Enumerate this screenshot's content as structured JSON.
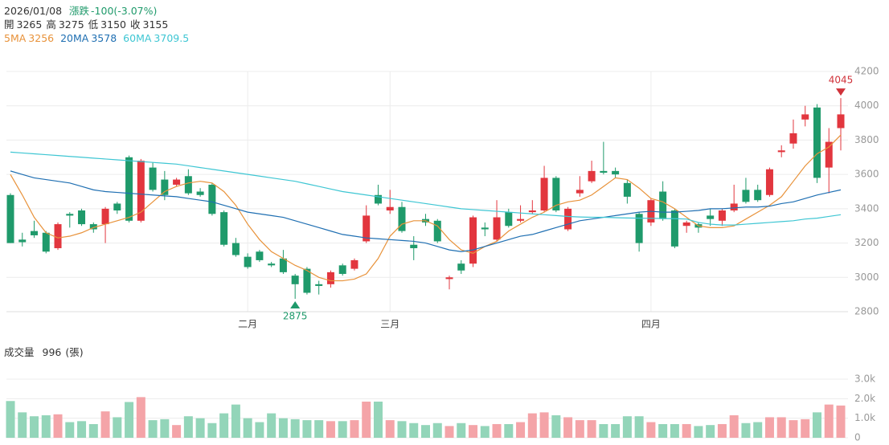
{
  "header": {
    "date": "2026/01/08",
    "change_label": "漲跌",
    "change": "-100(-3.07%)",
    "ohlc": [
      {
        "label": "開",
        "value": 3265
      },
      {
        "label": "高",
        "value": 3275
      },
      {
        "label": "低",
        "value": 3150
      },
      {
        "label": "收",
        "value": 3155
      }
    ]
  },
  "chart_data": [
    {
      "type": "candlestick",
      "up_color": "#e2363e",
      "down_color": "#1f9a6b",
      "categories": [
        null,
        null,
        null,
        null,
        null,
        null,
        null,
        null,
        null,
        null,
        null,
        null,
        null,
        null,
        null,
        null,
        null,
        null,
        null,
        null,
        "二月",
        null,
        null,
        null,
        null,
        null,
        null,
        null,
        null,
        null,
        null,
        null,
        "三月",
        null,
        null,
        null,
        null,
        null,
        null,
        null,
        null,
        null,
        null,
        null,
        null,
        null,
        null,
        null,
        null,
        null,
        null,
        null,
        null,
        null,
        "四月",
        null,
        null,
        null,
        null,
        null,
        null,
        null,
        null,
        null,
        null,
        null,
        null,
        null,
        null,
        null,
        null
      ],
      "open": [
        3480,
        3220,
        3270,
        3260,
        3170,
        3370,
        3390,
        3310,
        3310,
        3430,
        3700,
        3330,
        3640,
        3570,
        3540,
        3590,
        3500,
        3540,
        3380,
        3200,
        3120,
        3150,
        3080,
        3110,
        3010,
        3050,
        2960,
        2960,
        3070,
        3050,
        3210,
        3480,
        3390,
        3410,
        3190,
        3340,
        3330,
        2990,
        3080,
        3080,
        3290,
        3220,
        3380,
        3330,
        3380,
        3390,
        3580,
        3280,
        3490,
        3560,
        3620,
        3620,
        3550,
        3370,
        3320,
        3500,
        3390,
        3300,
        3310,
        3360,
        3330,
        3390,
        3510,
        3510,
        3480,
        3730,
        3780,
        3920,
        3990,
        3640,
        3870
      ],
      "high": [
        3490,
        3260,
        3330,
        3270,
        3320,
        3380,
        3400,
        3320,
        3410,
        3440,
        3710,
        3690,
        3670,
        3620,
        3580,
        3630,
        3520,
        3550,
        3390,
        3230,
        3140,
        3160,
        3090,
        3160,
        3020,
        3060,
        2980,
        3040,
        3080,
        3110,
        3420,
        3540,
        3510,
        3440,
        3240,
        3370,
        3340,
        3010,
        3100,
        3360,
        3320,
        3450,
        3400,
        3420,
        3450,
        3650,
        3590,
        3410,
        3590,
        3680,
        3790,
        3640,
        3570,
        3380,
        3460,
        3560,
        3400,
        3330,
        3320,
        3400,
        3400,
        3540,
        3580,
        3540,
        3640,
        3770,
        3920,
        4000,
        4010,
        3870,
        4045
      ],
      "low": [
        3200,
        3180,
        3230,
        3140,
        3160,
        3290,
        3300,
        3260,
        3200,
        3370,
        3320,
        3320,
        3500,
        3450,
        3530,
        3480,
        3470,
        3360,
        3180,
        3120,
        3050,
        3090,
        3060,
        3020,
        2875,
        2900,
        2900,
        2940,
        3010,
        3040,
        3200,
        3420,
        3370,
        3260,
        3100,
        3300,
        3200,
        2930,
        3020,
        3060,
        3240,
        3210,
        3290,
        3320,
        3370,
        3380,
        3380,
        3270,
        3470,
        3550,
        3600,
        3580,
        3430,
        3150,
        3300,
        3330,
        3170,
        3260,
        3260,
        3300,
        3300,
        3380,
        3430,
        3440,
        3470,
        3700,
        3750,
        3880,
        3550,
        3490,
        3740
      ],
      "close": [
        3200,
        3205,
        3245,
        3150,
        3310,
        3360,
        3310,
        3280,
        3400,
        3390,
        3330,
        3680,
        3510,
        3480,
        3570,
        3490,
        3480,
        3370,
        3190,
        3130,
        3060,
        3100,
        3070,
        3030,
        2960,
        2910,
        2950,
        3030,
        3020,
        3100,
        3360,
        3430,
        3410,
        3270,
        3170,
        3320,
        3210,
        3000,
        3040,
        3350,
        3280,
        3350,
        3300,
        3340,
        3390,
        3580,
        3390,
        3400,
        3510,
        3620,
        3610,
        3600,
        3470,
        3200,
        3450,
        3340,
        3180,
        3320,
        3290,
        3340,
        3390,
        3430,
        3440,
        3450,
        3630,
        3740,
        3840,
        3950,
        3580,
        3790,
        3950
      ],
      "series": [
        {
          "name": "5MA",
          "color": "#e8923a",
          "value": 3256,
          "values": [
            3600,
            3480,
            3350,
            3260,
            3230,
            3240,
            3260,
            3290,
            3310,
            3330,
            3350,
            3380,
            3440,
            3500,
            3530,
            3550,
            3560,
            3550,
            3500,
            3420,
            3310,
            3220,
            3150,
            3110,
            3070,
            3040,
            3000,
            2980,
            2980,
            2990,
            3020,
            3110,
            3240,
            3310,
            3330,
            3330,
            3300,
            3220,
            3160,
            3140,
            3180,
            3210,
            3270,
            3310,
            3350,
            3380,
            3420,
            3440,
            3450,
            3480,
            3530,
            3580,
            3570,
            3520,
            3460,
            3440,
            3400,
            3350,
            3300,
            3290,
            3290,
            3300,
            3340,
            3380,
            3420,
            3470,
            3560,
            3650,
            3720,
            3760,
            3830
          ]
        },
        {
          "name": "20MA",
          "color": "#1f6fb2",
          "value": 3578,
          "values": [
            3620,
            3600,
            3580,
            3570,
            3560,
            3550,
            3530,
            3510,
            3500,
            3495,
            3490,
            3485,
            3480,
            3475,
            3470,
            3460,
            3450,
            3440,
            3420,
            3400,
            3380,
            3370,
            3360,
            3350,
            3330,
            3310,
            3290,
            3270,
            3250,
            3240,
            3230,
            3225,
            3220,
            3215,
            3210,
            3200,
            3180,
            3160,
            3150,
            3160,
            3180,
            3200,
            3220,
            3240,
            3250,
            3270,
            3290,
            3310,
            3330,
            3340,
            3350,
            3360,
            3370,
            3380,
            3385,
            3380,
            3380,
            3385,
            3390,
            3400,
            3400,
            3405,
            3410,
            3410,
            3415,
            3430,
            3440,
            3460,
            3480,
            3495,
            3510
          ]
        },
        {
          "name": "60MA",
          "color": "#3ec6d3",
          "value": 3709.5,
          "values": [
            3730,
            3725,
            3720,
            3715,
            3710,
            3705,
            3700,
            3695,
            3690,
            3685,
            3680,
            3675,
            3670,
            3665,
            3660,
            3650,
            3640,
            3630,
            3620,
            3610,
            3600,
            3590,
            3580,
            3570,
            3560,
            3545,
            3530,
            3515,
            3500,
            3490,
            3480,
            3470,
            3460,
            3450,
            3440,
            3430,
            3420,
            3410,
            3400,
            3395,
            3390,
            3385,
            3380,
            3375,
            3370,
            3365,
            3360,
            3355,
            3352,
            3350,
            3350,
            3348,
            3346,
            3345,
            3344,
            3343,
            3342,
            3340,
            3320,
            3310,
            3305,
            3305,
            3310,
            3315,
            3320,
            3325,
            3330,
            3340,
            3345,
            3355,
            3365
          ]
        }
      ],
      "annotations": [
        {
          "value": 4045,
          "color": "#d0323a"
        },
        {
          "value": 2875,
          "color": "#1f9a6b"
        }
      ],
      "ylim": [
        2800,
        4200
      ],
      "yticks": [
        2800,
        3000,
        3200,
        3400,
        3600,
        3800,
        4000,
        4200
      ],
      "grid": true
    },
    {
      "type": "bar",
      "title": "成交量",
      "value": 996,
      "unit": "(張)",
      "up_color": "#f4a4a8",
      "down_color": "#93d5b9",
      "values": [
        1880,
        1300,
        1100,
        1150,
        1200,
        800,
        850,
        700,
        1350,
        1050,
        1830,
        2080,
        900,
        950,
        650,
        1100,
        1000,
        750,
        1250,
        1700,
        1000,
        800,
        1250,
        1000,
        950,
        900,
        900,
        850,
        850,
        900,
        1850,
        1850,
        900,
        850,
        750,
        650,
        750,
        600,
        750,
        650,
        600,
        700,
        700,
        800,
        1250,
        1300,
        1150,
        1050,
        900,
        900,
        700,
        700,
        1100,
        1100,
        800,
        700,
        700,
        700,
        600,
        650,
        700,
        1150,
        750,
        800,
        1050,
        1050,
        900,
        950,
        1300,
        1700,
        1650
      ],
      "ylim": [
        0,
        3000
      ],
      "yticks": [
        0,
        {
          "value": 1000,
          "label": "1.0k"
        },
        {
          "value": 2000,
          "label": "2.0k"
        },
        {
          "value": 3000,
          "label": "3.0k"
        }
      ],
      "grid": true
    }
  ]
}
